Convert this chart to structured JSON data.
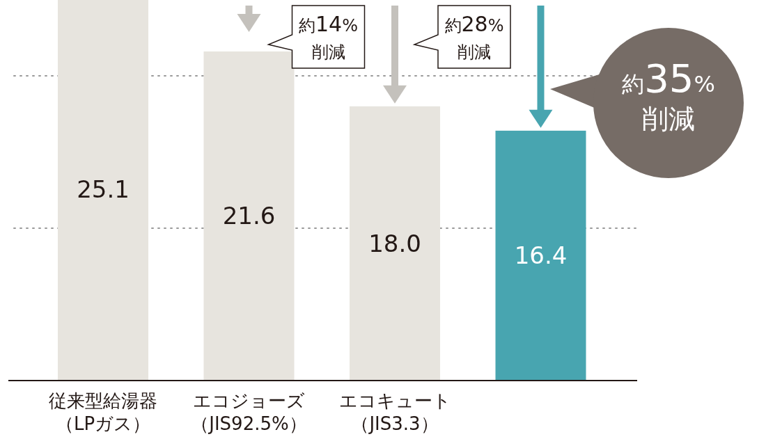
{
  "chart_data": {
    "type": "bar",
    "categories": [
      "従来型給湯器（LPガス）",
      "エコジョーズ（JIS92.5%）",
      "エコキュート（JIS3.3）",
      null
    ],
    "values": [
      25.1,
      21.6,
      18.0,
      16.4
    ],
    "colors": [
      "#e7e4de",
      "#e7e4de",
      "#e7e4de",
      "#48a5b0"
    ],
    "value_labels": [
      "25.1",
      "21.6",
      "18.0",
      "16.4"
    ],
    "ref_lines": [
      {
        "axis": "y",
        "value": 10,
        "color": "#999999",
        "line_style": "dotted"
      },
      {
        "axis": "y",
        "value": 20,
        "color": "#999999",
        "line_style": "dotted"
      }
    ],
    "annotations": [
      "約14%\n削減",
      "約28%\n削減",
      "約35%\n削減"
    ]
  }
}
